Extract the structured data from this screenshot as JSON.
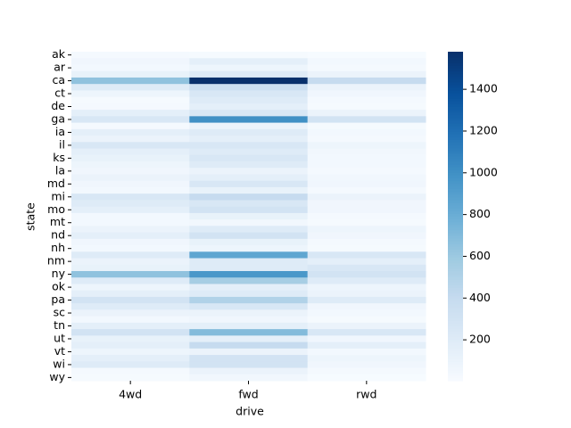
{
  "chart_data": {
    "type": "heatmap",
    "xlabel": "drive",
    "ylabel": "state",
    "x": [
      "4wd",
      "fwd",
      "rwd"
    ],
    "y": [
      "ak",
      null,
      "ar",
      null,
      "ca",
      null,
      "ct",
      null,
      "de",
      null,
      "ga",
      null,
      "ia",
      null,
      "il",
      null,
      "ks",
      null,
      "la",
      null,
      "md",
      null,
      "mi",
      null,
      "mo",
      null,
      "mt",
      null,
      "nd",
      null,
      "nh",
      null,
      "nm",
      null,
      "ny",
      null,
      "ok",
      null,
      "pa",
      null,
      "sc",
      null,
      "tn",
      null,
      "ut",
      null,
      "vt",
      null,
      "wi",
      null,
      "wy"
    ],
    "values": [
      [
        30,
        20,
        10
      ],
      [
        60,
        150,
        40
      ],
      [
        40,
        80,
        30
      ],
      [
        120,
        200,
        100
      ],
      [
        650,
        1580,
        400
      ],
      [
        200,
        350,
        100
      ],
      [
        80,
        250,
        60
      ],
      [
        20,
        200,
        30
      ],
      [
        30,
        150,
        20
      ],
      [
        150,
        250,
        100
      ],
      [
        250,
        1000,
        300
      ],
      [
        30,
        100,
        20
      ],
      [
        150,
        200,
        40
      ],
      [
        100,
        150,
        30
      ],
      [
        250,
        250,
        80
      ],
      [
        150,
        200,
        50
      ],
      [
        120,
        250,
        40
      ],
      [
        80,
        200,
        40
      ],
      [
        60,
        100,
        30
      ],
      [
        100,
        150,
        50
      ],
      [
        60,
        250,
        60
      ],
      [
        40,
        120,
        30
      ],
      [
        250,
        400,
        100
      ],
      [
        200,
        250,
        60
      ],
      [
        150,
        300,
        60
      ],
      [
        40,
        120,
        30
      ],
      [
        40,
        50,
        20
      ],
      [
        100,
        200,
        80
      ],
      [
        150,
        300,
        60
      ],
      [
        60,
        120,
        30
      ],
      [
        40,
        80,
        20
      ],
      [
        200,
        850,
        250
      ],
      [
        100,
        200,
        150
      ],
      [
        120,
        200,
        250
      ],
      [
        650,
        950,
        300
      ],
      [
        200,
        550,
        200
      ],
      [
        80,
        150,
        80
      ],
      [
        150,
        200,
        100
      ],
      [
        300,
        500,
        200
      ],
      [
        200,
        250,
        60
      ],
      [
        100,
        100,
        40
      ],
      [
        40,
        60,
        20
      ],
      [
        150,
        150,
        100
      ],
      [
        300,
        700,
        250
      ],
      [
        120,
        150,
        60
      ],
      [
        150,
        400,
        150
      ],
      [
        80,
        100,
        40
      ],
      [
        150,
        300,
        80
      ],
      [
        200,
        300,
        60
      ],
      [
        30,
        100,
        30
      ],
      [
        20,
        50,
        10
      ]
    ],
    "colormap": "Blues",
    "clim": [
      4,
      1580
    ],
    "cticks": [
      200,
      400,
      600,
      800,
      1000,
      1200,
      1400
    ]
  }
}
